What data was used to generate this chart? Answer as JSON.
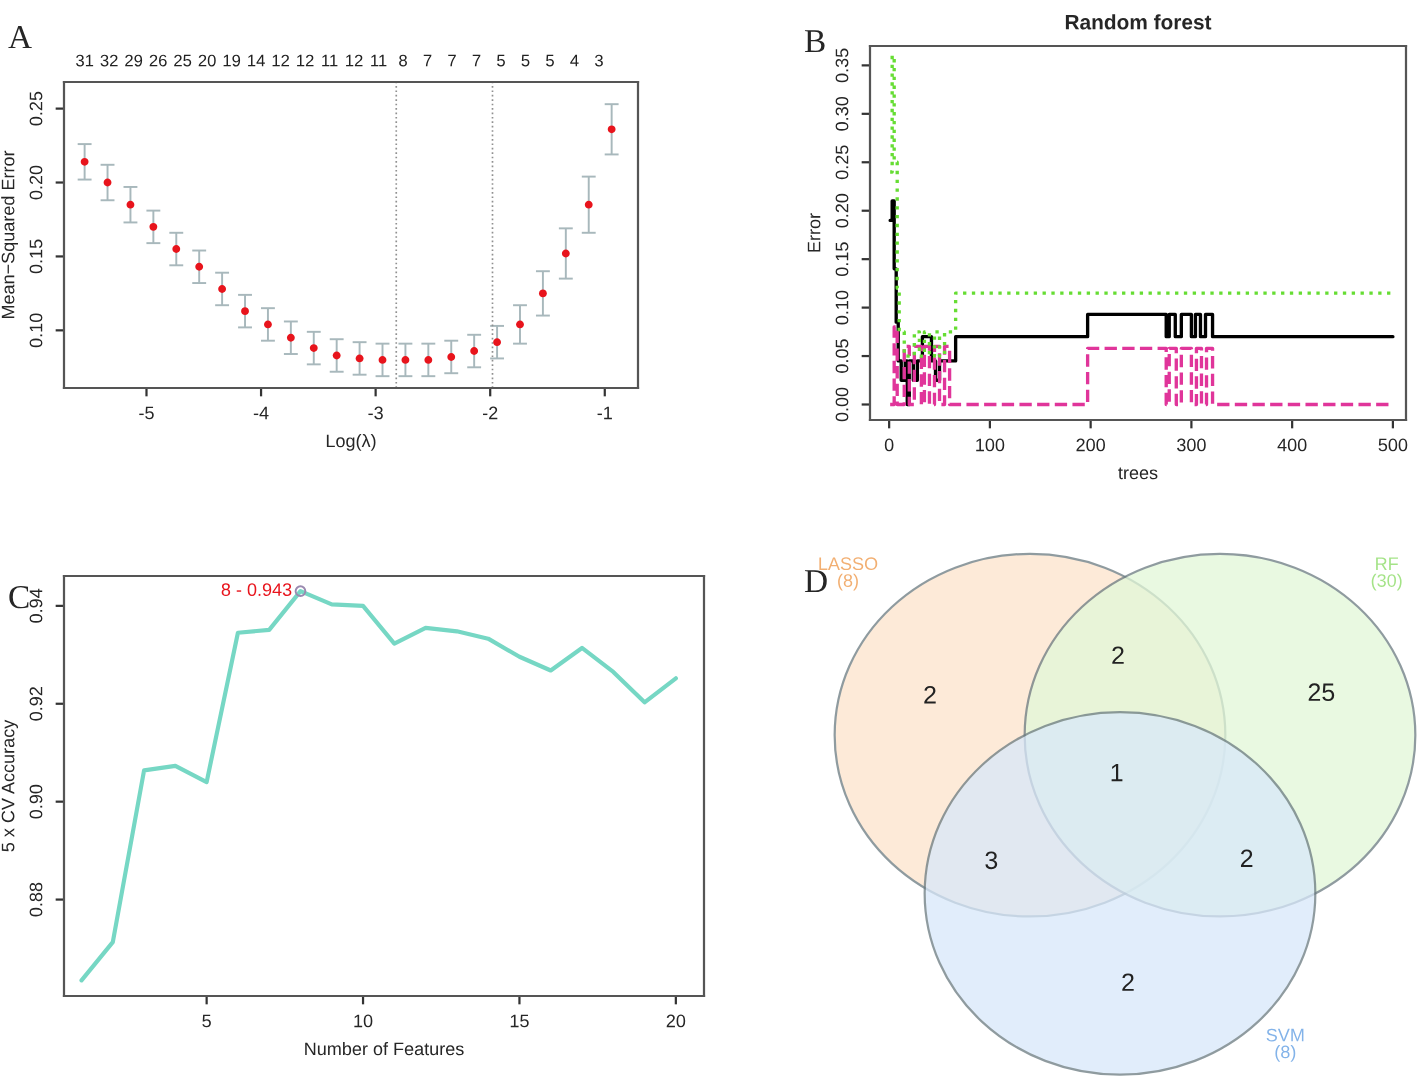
{
  "chart_data": [
    {
      "type": "scatter",
      "annotations": [
        "A",
        "31",
        "32",
        "29",
        "26",
        "25",
        "20",
        "19",
        "14",
        "12",
        "12",
        "11",
        "12",
        "11",
        "8",
        "7",
        "7",
        "7",
        "5",
        "5",
        "5",
        "4",
        "3"
      ],
      "xlabel": "Log(λ)",
      "ylabel": "Mean−Squared Error",
      "marker": "circle",
      "x": [
        -5.54,
        -5.34,
        -5.14,
        -4.94,
        -4.74,
        -4.54,
        -4.34,
        -4.14,
        -3.94,
        -3.74,
        -3.54,
        -3.34,
        -3.14,
        -2.94,
        -2.74,
        -2.54,
        -2.34,
        -2.14,
        -1.94,
        -1.74,
        -1.54,
        -1.34,
        -1.14,
        -0.94
      ],
      "series": [
        {
          "color": "#e8141c",
          "values": [
            0.214,
            0.2,
            0.185,
            0.17,
            0.155,
            0.143,
            0.128,
            0.113,
            0.104,
            0.095,
            0.088,
            0.083,
            0.081,
            0.08,
            0.08,
            0.08,
            0.082,
            0.086,
            0.092,
            0.104,
            0.125,
            0.152,
            0.185,
            0.236
          ],
          "errors": [
            0.012,
            0.012,
            0.012,
            0.011,
            0.011,
            0.011,
            0.011,
            0.011,
            0.011,
            0.011,
            0.011,
            0.011,
            0.011,
            0.011,
            0.011,
            0.011,
            0.011,
            0.011,
            0.011,
            0.013,
            0.015,
            0.017,
            0.019,
            0.017
          ]
        }
      ],
      "xlim": [
        -5.72,
        -0.71
      ],
      "xticks": [
        -5,
        -4,
        -3,
        -2,
        -1
      ],
      "ylim": [
        0.061,
        0.268
      ],
      "yticks": [
        {
          "value": 0.1,
          "label": "0.10"
        },
        {
          "value": 0.15,
          "label": "0.15"
        },
        {
          "value": 0.2,
          "label": "0.20"
        },
        {
          "value": 0.25,
          "label": "0.25"
        }
      ],
      "ref_lines": [
        {
          "axis": "x",
          "value": -2.82,
          "color": "#909090",
          "line_style": "dotted"
        },
        {
          "axis": "x",
          "value": -1.98,
          "color": "#909090",
          "line_style": "dotted"
        }
      ]
    },
    {
      "type": "step",
      "title": "Random forest",
      "annotations": [
        "B"
      ],
      "xlabel": "trees",
      "ylabel": "Error",
      "series": [
        {
          "color": "#000000",
          "line_style": "solid",
          "x": [
            1,
            3,
            5,
            7,
            9,
            12,
            16,
            18,
            20,
            24,
            28,
            33,
            38,
            42,
            46,
            50,
            54,
            66,
            197,
            275,
            278,
            284,
            290,
            300,
            304,
            309,
            314,
            321,
            500
          ],
          "values": [
            0.19,
            0.21,
            0.14,
            0.085,
            0.045,
            0.025,
            0.045,
            0.0,
            0.045,
            0.025,
            0.045,
            0.07,
            0.07,
            0.045,
            0.025,
            0.045,
            0.045,
            0.07,
            0.093,
            0.07,
            0.093,
            0.07,
            0.093,
            0.07,
            0.093,
            0.07,
            0.093,
            0.07,
            0.07
          ]
        },
        {
          "color": "#e0359a",
          "line_style": "dashed",
          "x": [
            1,
            5,
            8,
            15,
            20,
            25,
            32,
            35,
            40,
            45,
            50,
            55,
            60,
            197,
            275,
            278,
            285,
            290,
            300,
            305,
            310,
            315,
            321,
            500
          ],
          "values": [
            0.0,
            0.08,
            0.0,
            0.06,
            0.0,
            0.06,
            0.0,
            0.06,
            0.0,
            0.06,
            0.0,
            0.06,
            0.0,
            0.058,
            0.0,
            0.058,
            0.0,
            0.058,
            0.0,
            0.058,
            0.0,
            0.058,
            0.0,
            0.0
          ]
        },
        {
          "color": "#66dd33",
          "line_style": "dotted",
          "x": [
            1,
            3,
            5,
            8,
            10,
            15,
            25,
            30,
            35,
            40,
            45,
            50,
            55,
            66,
            500
          ],
          "values": [
            0.24,
            0.36,
            0.25,
            0.12,
            0.075,
            0.05,
            0.075,
            0.05,
            0.075,
            0.05,
            0.075,
            0.05,
            0.075,
            0.115,
            0.115
          ]
        }
      ],
      "xlim": [
        -19,
        513
      ],
      "xticks": [
        0,
        100,
        200,
        300,
        400,
        500
      ],
      "ylim": [
        -0.016,
        0.37
      ],
      "yticks": [
        {
          "value": 0,
          "label": "0.00"
        },
        {
          "value": 0.05,
          "label": "0.05"
        },
        {
          "value": 0.1,
          "label": "0.10"
        },
        {
          "value": 0.15,
          "label": "0.15"
        },
        {
          "value": 0.2,
          "label": "0.20"
        },
        {
          "value": 0.25,
          "label": "0.25"
        },
        {
          "value": 0.3,
          "label": "0.30"
        },
        {
          "value": 0.35,
          "label": "0.35"
        }
      ]
    },
    {
      "type": "line",
      "annotations": [
        "C",
        {
          "text": "8 - 0.943",
          "x": 8,
          "y": 0.943
        }
      ],
      "xlabel": "Number of Features",
      "ylabel": "5 x CV Accuracy",
      "x": [
        1,
        2,
        3,
        4,
        5,
        6,
        7,
        8,
        9,
        10,
        11,
        12,
        13,
        14,
        15,
        16,
        17,
        18,
        19,
        20
      ],
      "series": [
        {
          "color": "#76d7c4",
          "values": [
            0.8635,
            0.8713,
            0.9064,
            0.9073,
            0.904,
            0.9345,
            0.9351,
            0.943,
            0.9403,
            0.94,
            0.9323,
            0.9355,
            0.9348,
            0.9333,
            0.9296,
            0.9268,
            0.9314,
            0.9265,
            0.9203,
            0.9252
          ]
        }
      ],
      "xlim": [
        0.44,
        20.9
      ],
      "xticks": [
        5,
        10,
        15,
        20
      ],
      "ylim": [
        0.8603,
        0.9461
      ],
      "yticks": [
        {
          "value": 0.88,
          "label": "0.88"
        },
        {
          "value": 0.9,
          "label": "0.90"
        },
        {
          "value": 0.92,
          "label": "0.92"
        },
        {
          "value": 0.94,
          "label": "0.94"
        }
      ]
    },
    {
      "type": "other",
      "annotations": [
        "D",
        "2",
        "2",
        "25",
        "3",
        "1",
        "2",
        "2"
      ],
      "categories": [
        "LASSO\n(8)",
        "RF\n(30)",
        "SVM\n(8)"
      ],
      "colors": [
        "#fde3cb",
        "#e2f8d8",
        "#d8e8fa"
      ]
    }
  ]
}
